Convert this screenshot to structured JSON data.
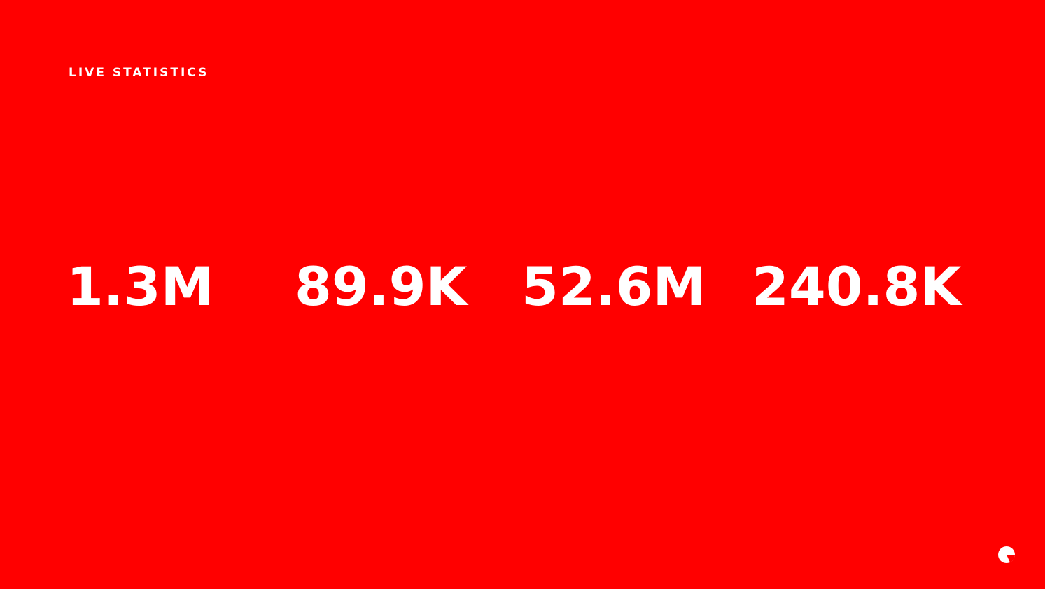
{
  "slide": {
    "heading": "LIVE STATISTICS",
    "background_color": "#ff0000",
    "text_color": "#ffffff",
    "stats": [
      {
        "value": "1.3M"
      },
      {
        "value": "89.9K"
      },
      {
        "value": "52.6M"
      },
      {
        "value": "240.8K"
      }
    ],
    "logo_icon": "brand-logo-icon"
  }
}
